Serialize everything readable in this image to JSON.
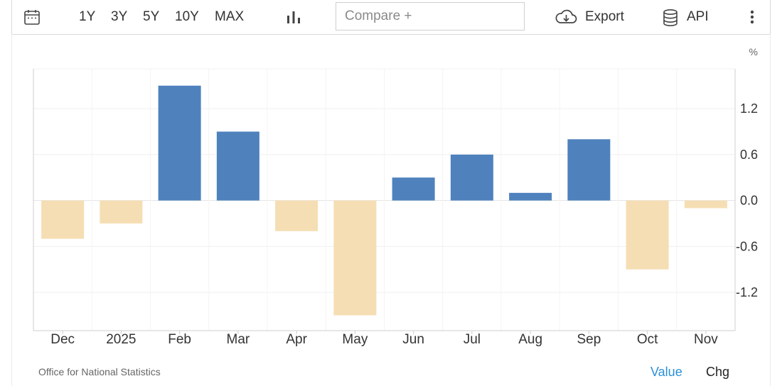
{
  "toolbar": {
    "ranges": [
      "1Y",
      "3Y",
      "5Y",
      "10Y",
      "MAX"
    ],
    "compare_placeholder": "Compare +",
    "export_label": "Export",
    "api_label": "API"
  },
  "chart_data": {
    "type": "bar",
    "unit_label": "%",
    "categories": [
      "Dec",
      "2025",
      "Feb",
      "Mar",
      "Apr",
      "May",
      "Jun",
      "Jul",
      "Aug",
      "Sep",
      "Oct",
      "Nov"
    ],
    "values": [
      -0.5,
      -0.3,
      1.5,
      0.9,
      -0.4,
      -1.5,
      0.3,
      0.6,
      0.1,
      0.8,
      -0.9,
      -0.1
    ],
    "ylim": [
      -1.7,
      1.72
    ],
    "yticks": [
      1.2,
      0.6,
      0.0,
      -0.6,
      -1.2
    ],
    "ytick_labels": [
      "1.2",
      "0.6",
      "0.0",
      "-0.6",
      "-1.2"
    ],
    "grid": true,
    "positive_color": "#4f81bd",
    "negative_color": "#f5deb3"
  },
  "footer": {
    "source": "Office for National Statistics",
    "value_tab": "Value",
    "chg_tab": "Chg"
  }
}
